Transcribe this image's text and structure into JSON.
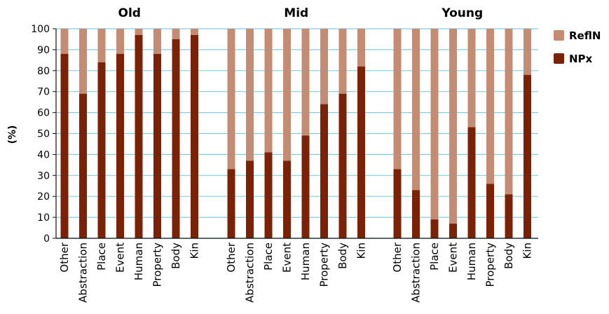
{
  "chart_data": {
    "type": "bar",
    "stacked": true,
    "ylabel": "(%)",
    "ylim": [
      0,
      100
    ],
    "yticks": [
      0,
      10,
      20,
      30,
      40,
      50,
      60,
      70,
      80,
      90,
      100
    ],
    "grid": true,
    "legend_position": "top-right",
    "categories": [
      "Other",
      "Abstraction",
      "Place",
      "Event",
      "Human",
      "Property",
      "Body",
      "Kin"
    ],
    "legend": [
      {
        "name": "ReflN",
        "color": "#c48c73"
      },
      {
        "name": "NPx",
        "color": "#7a2106"
      }
    ],
    "panels": [
      {
        "title": "Old",
        "series": [
          {
            "name": "NPx",
            "values": [
              88,
              69,
              84,
              88,
              97,
              88,
              95,
              97
            ]
          }
        ]
      },
      {
        "title": "Mid",
        "series": [
          {
            "name": "NPx",
            "values": [
              33,
              37,
              41,
              37,
              49,
              64,
              69,
              82
            ]
          }
        ]
      },
      {
        "title": "Young",
        "series": [
          {
            "name": "NPx",
            "values": [
              33,
              23,
              9,
              7,
              53,
              26,
              21,
              78
            ]
          }
        ]
      }
    ],
    "colors": {
      "NPx": "#7a2106",
      "ReflN": "#c48c73",
      "grid": "#7ecfe0",
      "axis": "#111111"
    }
  }
}
